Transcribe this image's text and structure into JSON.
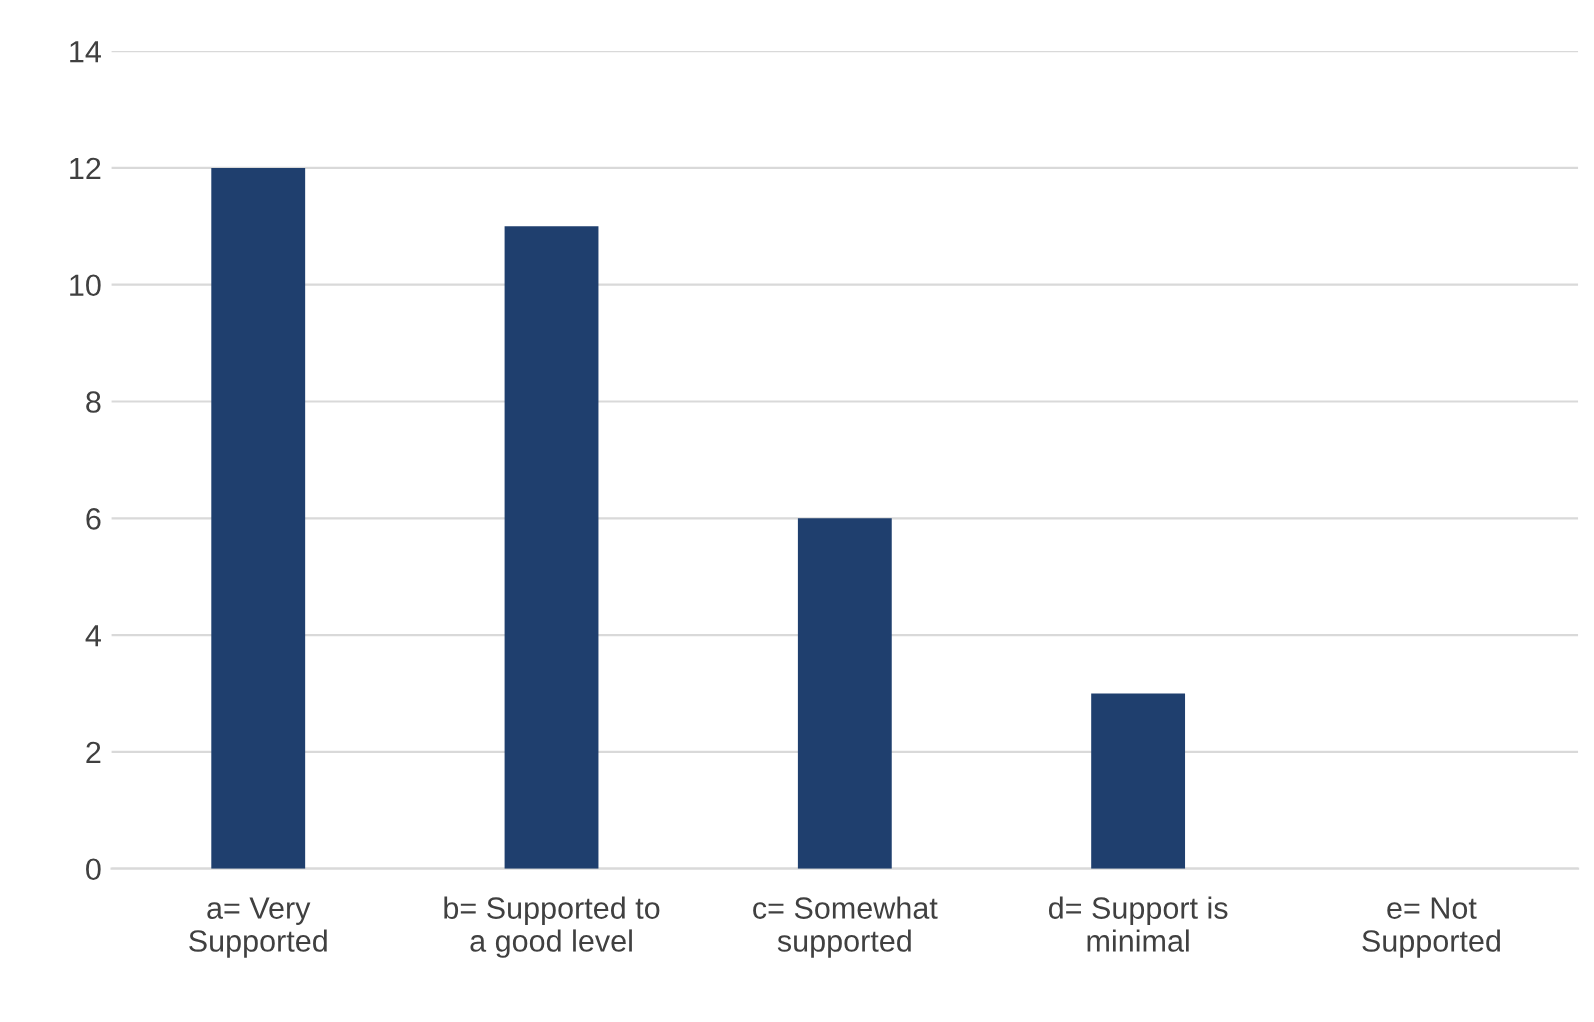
{
  "chart_data": {
    "type": "bar",
    "categories": [
      "a= Very\nSupported",
      "b= Supported to\na good level",
      "c= Somewhat\nsupported",
      "d= Support is\nminimal",
      "e= Not\nSupported"
    ],
    "values": [
      12,
      11,
      6,
      3,
      0
    ],
    "color": "#1f3f6e",
    "ylim": [
      0,
      14
    ],
    "yticks": [
      0,
      2,
      4,
      6,
      8,
      10,
      12,
      14
    ],
    "grid": "y",
    "legend": false
  }
}
